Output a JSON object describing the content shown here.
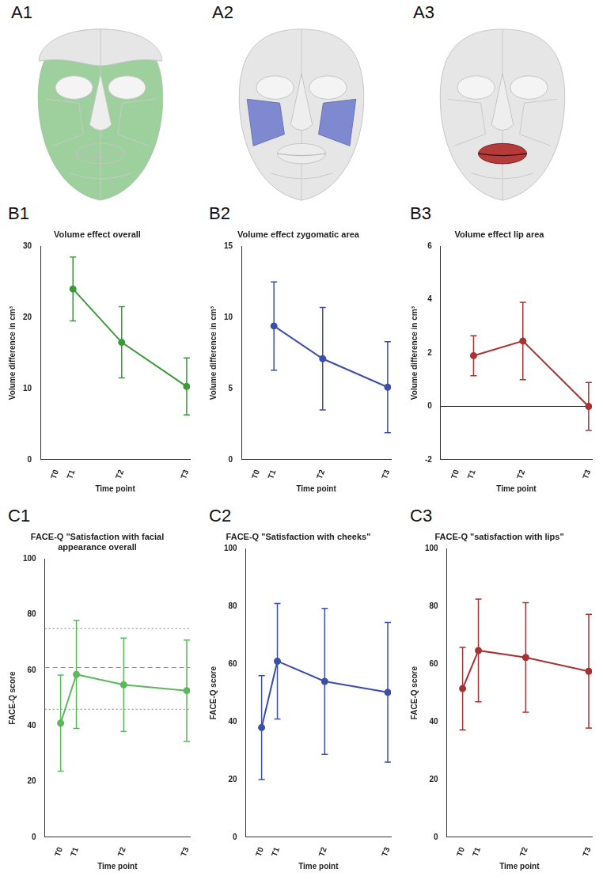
{
  "faces": [
    {
      "panel": "A1",
      "color": "#8fcb8f"
    },
    {
      "panel": "A2",
      "color": "#7f89d0"
    },
    {
      "panel": "A3",
      "color": "#b53a3a"
    }
  ],
  "chart_data": [
    {
      "panel": "B1",
      "type": "line",
      "title": "Volume effect overall",
      "x_label": "Time point",
      "y_label": "Volume difference in cm³",
      "x": [
        0,
        1,
        4,
        8
      ],
      "values": [
        null,
        24,
        16.5,
        10.3
      ],
      "errors": [
        null,
        4.5,
        5,
        4
      ],
      "color": "#3a9a3a",
      "marker": "circle",
      "xlim": [
        -1,
        8.2
      ],
      "xticks": [
        {
          "value": 0,
          "label": "T0"
        },
        {
          "value": 1,
          "label": "T1"
        },
        {
          "value": 4,
          "label": "T2"
        },
        {
          "value": 8,
          "label": "T3"
        }
      ],
      "ylim": [
        0,
        30
      ],
      "yticks": [
        0,
        10,
        20,
        30
      ],
      "grid": false
    },
    {
      "panel": "B2",
      "type": "line",
      "title": "Volume effect zygomatic area",
      "x_label": "Time point",
      "y_label": "Volume difference in cm³",
      "x": [
        0,
        1,
        4,
        8
      ],
      "values": [
        null,
        9.4,
        7.1,
        5.1
      ],
      "errors": [
        null,
        3.1,
        3.6,
        3.2
      ],
      "color": "#3c4fa8",
      "marker": "circle",
      "xlim": [
        -1,
        8.2
      ],
      "xticks": [
        {
          "value": 0,
          "label": "T0"
        },
        {
          "value": 1,
          "label": "T1"
        },
        {
          "value": 4,
          "label": "T2"
        },
        {
          "value": 8,
          "label": "T3"
        }
      ],
      "ylim": [
        0,
        15
      ],
      "yticks": [
        0,
        5,
        10,
        15
      ],
      "grid": false
    },
    {
      "panel": "B3",
      "type": "line",
      "title": "Volume effect lip area",
      "x_label": "Time point",
      "y_label": "Volume difference in cm³",
      "x": [
        0,
        1,
        4,
        8
      ],
      "values": [
        null,
        1.9,
        2.45,
        0
      ],
      "errors": [
        null,
        0.75,
        1.45,
        0.9
      ],
      "color": "#a83232",
      "marker": "circle",
      "reference_lines": [
        {
          "value": 0,
          "line_style": "solid"
        }
      ],
      "xlim": [
        -1,
        8.2
      ],
      "xticks": [
        {
          "value": 0,
          "label": "T0"
        },
        {
          "value": 1,
          "label": "T1"
        },
        {
          "value": 4,
          "label": "T2"
        },
        {
          "value": 8,
          "label": "T3"
        }
      ],
      "ylim": [
        -2,
        6
      ],
      "yticks": [
        -2,
        0,
        2,
        4,
        6
      ],
      "grid": false
    },
    {
      "panel": "C1",
      "type": "line",
      "title": "FACE-Q \"Satisfaction with facial appearance overall",
      "x_label": "Time point",
      "y_label": "FACE-Q score",
      "x": [
        0,
        1,
        4,
        8
      ],
      "values": [
        41,
        58.5,
        54.8,
        52.7
      ],
      "errors": [
        17.3,
        19.4,
        16.8,
        18.2
      ],
      "color": "#5cb85c",
      "marker": "circle",
      "reference_lines": [
        {
          "value": 75,
          "line_style": "dotted"
        },
        {
          "value": 61,
          "line_style": "dashed"
        },
        {
          "value": 46,
          "line_style": "dotted"
        }
      ],
      "xlim": [
        -1,
        8.2
      ],
      "xticks": [
        {
          "value": 0,
          "label": "T0"
        },
        {
          "value": 1,
          "label": "T1"
        },
        {
          "value": 4,
          "label": "T2"
        },
        {
          "value": 8,
          "label": "T3"
        }
      ],
      "ylim": [
        0,
        100
      ],
      "yticks": [
        0,
        20,
        40,
        60,
        80,
        100
      ],
      "grid": false
    },
    {
      "panel": "C2",
      "type": "line",
      "title": "FACE-Q \"Satisfaction with cheeks\"",
      "x_label": "Time point",
      "y_label": "FACE-Q score",
      "x": [
        0,
        1,
        4,
        8
      ],
      "values": [
        38,
        61,
        54,
        50.2
      ],
      "errors": [
        18,
        20,
        25.3,
        24.2
      ],
      "color": "#3c4fa8",
      "marker": "circle",
      "xlim": [
        -1,
        8.2
      ],
      "xticks": [
        {
          "value": 0,
          "label": "T0"
        },
        {
          "value": 1,
          "label": "T1"
        },
        {
          "value": 4,
          "label": "T2"
        },
        {
          "value": 8,
          "label": "T3"
        }
      ],
      "ylim": [
        0,
        100
      ],
      "yticks": [
        0,
        20,
        40,
        60,
        80,
        100
      ],
      "grid": false
    },
    {
      "panel": "C3",
      "type": "line",
      "title": "FACE-Q \"satisfaction with lips\"",
      "x_label": "Time point",
      "y_label": "FACE-Q score",
      "x": [
        0,
        1,
        4,
        8
      ],
      "values": [
        51.5,
        64.7,
        62.3,
        57.5
      ],
      "errors": [
        14.3,
        17.8,
        19,
        19.7
      ],
      "color": "#a83232",
      "marker": "circle",
      "xlim": [
        -1,
        8.2
      ],
      "xticks": [
        {
          "value": 0,
          "label": "T0"
        },
        {
          "value": 1,
          "label": "T1"
        },
        {
          "value": 4,
          "label": "T2"
        },
        {
          "value": 8,
          "label": "T3"
        }
      ],
      "ylim": [
        0,
        100
      ],
      "yticks": [
        0,
        20,
        40,
        60,
        80,
        100
      ],
      "grid": false
    }
  ]
}
